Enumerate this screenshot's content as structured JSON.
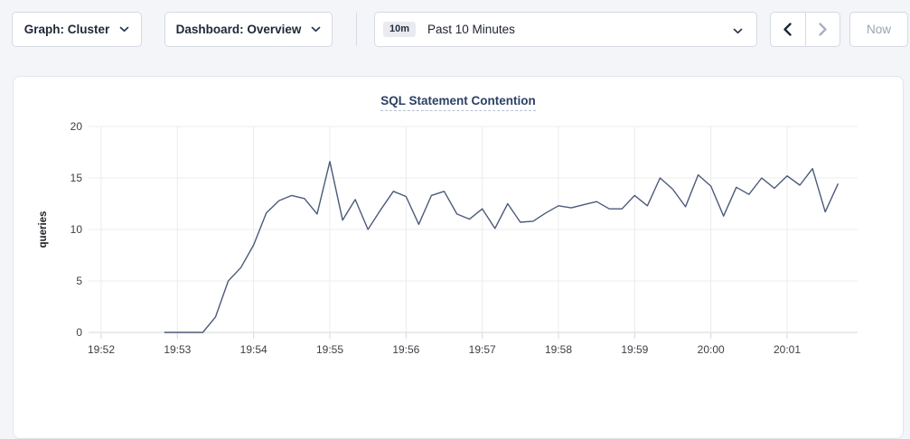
{
  "toolbar": {
    "graph_dropdown": {
      "label": "Graph: Cluster"
    },
    "dashboard_dropdown": {
      "label": "Dashboard: Overview"
    },
    "time_selector": {
      "badge": "10m",
      "label": "Past 10 Minutes"
    },
    "now_label": "Now"
  },
  "chart_data": {
    "type": "line",
    "title": "SQL Statement Contention",
    "ylabel": "queries",
    "ylim": [
      0,
      20
    ],
    "y_ticks": [
      0,
      5,
      10,
      15,
      20
    ],
    "x_tick_labels": [
      "19:52",
      "19:53",
      "19:54",
      "19:55",
      "19:56",
      "19:57",
      "19:58",
      "19:59",
      "20:00",
      "20:01"
    ],
    "grid": true,
    "legend": "none",
    "line_color": "#4c5a7a",
    "series": [
      {
        "name": "SQL Statement Contention",
        "start_time": "19:52:50",
        "interval_seconds": 10,
        "values": [
          0,
          0,
          0,
          0,
          1.5,
          5.0,
          6.3,
          8.5,
          11.6,
          12.8,
          13.3,
          13.0,
          11.5,
          16.6,
          10.9,
          12.9,
          10.0,
          11.9,
          13.7,
          13.2,
          10.5,
          13.3,
          13.7,
          11.5,
          11.0,
          12.0,
          10.1,
          12.5,
          10.7,
          10.8,
          11.6,
          12.3,
          12.1,
          12.4,
          12.7,
          12.0,
          12.0,
          13.3,
          12.3,
          15.0,
          13.9,
          12.2,
          15.3,
          14.2,
          11.3,
          14.1,
          13.4,
          15.0,
          14.0,
          15.2,
          14.3,
          15.9,
          11.7,
          14.4
        ]
      }
    ]
  }
}
